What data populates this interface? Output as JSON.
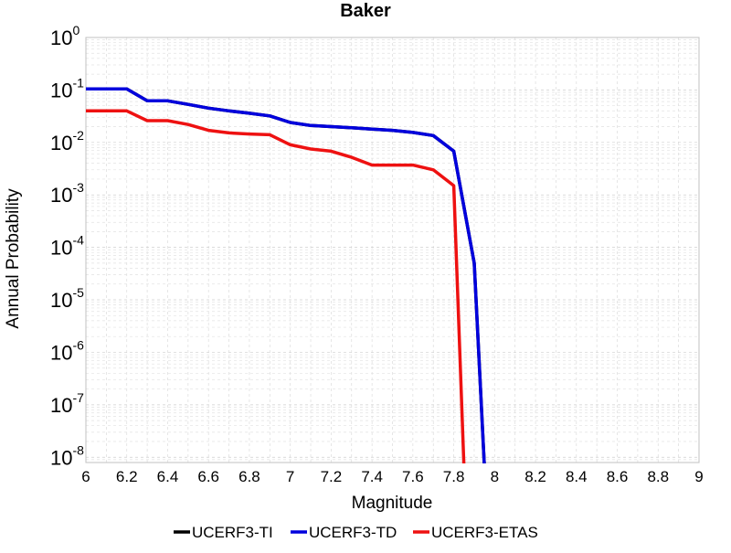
{
  "chart_data": {
    "type": "line",
    "title": "Baker",
    "xlabel": "Magnitude",
    "ylabel": "Annual Probability",
    "xlim": [
      6,
      9
    ],
    "ylim_exp": [
      -8.1,
      0
    ],
    "y_scale": "log",
    "grid": true,
    "legend_position": "bottom",
    "x_ticks": [
      "6",
      "6.2",
      "6.4",
      "6.6",
      "6.8",
      "7",
      "7.2",
      "7.4",
      "7.6",
      "7.8",
      "8",
      "8.2",
      "8.4",
      "8.6",
      "8.8",
      "9"
    ],
    "y_ticks": [
      {
        "base": "10",
        "exp": "0",
        "value": 1
      },
      {
        "base": "10",
        "exp": "-1",
        "value": 0.1
      },
      {
        "base": "10",
        "exp": "-2",
        "value": 0.01
      },
      {
        "base": "10",
        "exp": "-3",
        "value": 0.001
      },
      {
        "base": "10",
        "exp": "-4",
        "value": 0.0001
      },
      {
        "base": "10",
        "exp": "-5",
        "value": 1e-05
      },
      {
        "base": "10",
        "exp": "-6",
        "value": 1e-06
      },
      {
        "base": "10",
        "exp": "-7",
        "value": 1e-07
      },
      {
        "base": "10",
        "exp": "-8",
        "value": 1e-08
      }
    ],
    "series": [
      {
        "name": "UCERF3-TI",
        "color": "#000000",
        "points": [
          [
            6.0,
            0.105
          ],
          [
            6.2,
            0.105
          ],
          [
            6.3,
            0.062
          ],
          [
            6.4,
            0.062
          ],
          [
            6.5,
            0.053
          ],
          [
            6.6,
            0.045
          ],
          [
            6.7,
            0.04
          ],
          [
            6.8,
            0.036
          ],
          [
            6.9,
            0.032
          ],
          [
            7.0,
            0.024
          ],
          [
            7.1,
            0.021
          ],
          [
            7.2,
            0.02
          ],
          [
            7.3,
            0.019
          ],
          [
            7.4,
            0.018
          ],
          [
            7.5,
            0.017
          ],
          [
            7.6,
            0.0155
          ],
          [
            7.7,
            0.0135
          ],
          [
            7.8,
            0.0068
          ],
          [
            7.9,
            5e-05
          ],
          [
            7.95,
            1e-09
          ]
        ]
      },
      {
        "name": "UCERF3-TD",
        "color": "#0000dd",
        "points": [
          [
            6.0,
            0.105
          ],
          [
            6.2,
            0.105
          ],
          [
            6.3,
            0.062
          ],
          [
            6.4,
            0.062
          ],
          [
            6.5,
            0.053
          ],
          [
            6.6,
            0.045
          ],
          [
            6.7,
            0.04
          ],
          [
            6.8,
            0.036
          ],
          [
            6.9,
            0.032
          ],
          [
            7.0,
            0.024
          ],
          [
            7.1,
            0.021
          ],
          [
            7.2,
            0.02
          ],
          [
            7.3,
            0.019
          ],
          [
            7.4,
            0.018
          ],
          [
            7.5,
            0.017
          ],
          [
            7.6,
            0.0155
          ],
          [
            7.7,
            0.0135
          ],
          [
            7.8,
            0.0068
          ],
          [
            7.9,
            5e-05
          ],
          [
            7.95,
            1e-09
          ]
        ]
      },
      {
        "name": "UCERF3-ETAS",
        "color": "#ee1111",
        "points": [
          [
            6.0,
            0.04
          ],
          [
            6.2,
            0.04
          ],
          [
            6.3,
            0.026
          ],
          [
            6.4,
            0.026
          ],
          [
            6.5,
            0.022
          ],
          [
            6.6,
            0.017
          ],
          [
            6.7,
            0.0152
          ],
          [
            6.8,
            0.0145
          ],
          [
            6.9,
            0.014
          ],
          [
            7.0,
            0.009
          ],
          [
            7.1,
            0.0075
          ],
          [
            7.2,
            0.0068
          ],
          [
            7.3,
            0.0052
          ],
          [
            7.4,
            0.0037
          ],
          [
            7.5,
            0.0037
          ],
          [
            7.6,
            0.0037
          ],
          [
            7.7,
            0.003
          ],
          [
            7.8,
            0.0015
          ],
          [
            7.85,
            1e-09
          ]
        ]
      }
    ]
  }
}
